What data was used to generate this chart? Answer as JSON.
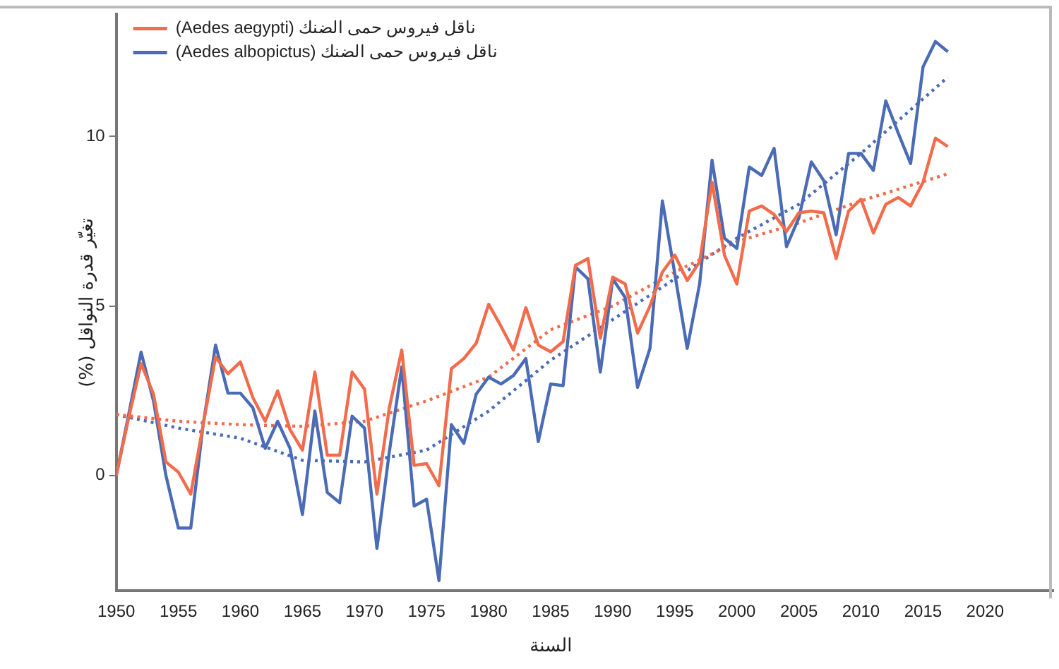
{
  "chart_data": {
    "type": "line",
    "xlabel": "السنة",
    "ylabel": "تغيّر قدرة النواقل (%)",
    "x": [
      1950,
      1951,
      1952,
      1953,
      1954,
      1955,
      1956,
      1957,
      1958,
      1959,
      1960,
      1961,
      1962,
      1963,
      1964,
      1965,
      1966,
      1967,
      1968,
      1969,
      1970,
      1971,
      1972,
      1973,
      1974,
      1975,
      1976,
      1977,
      1978,
      1979,
      1980,
      1981,
      1982,
      1983,
      1984,
      1985,
      1986,
      1987,
      1988,
      1989,
      1990,
      1991,
      1992,
      1993,
      1994,
      1995,
      1996,
      1997,
      1998,
      1999,
      2000,
      2001,
      2002,
      2003,
      2004,
      2005,
      2006,
      2007,
      2008,
      2009,
      2010,
      2011,
      2012,
      2013,
      2014,
      2015,
      2016,
      2017
    ],
    "series": [
      {
        "name": "ناقل فيروس حمى الضنك (Aedes aegypti)",
        "color": "#f26b4b",
        "values": [
          0,
          1.7,
          3.3,
          2.4,
          0.4,
          0.1,
          -0.55,
          1.5,
          3.5,
          3.0,
          3.35,
          2.3,
          1.6,
          2.5,
          1.35,
          0.75,
          3.05,
          0.6,
          0.6,
          3.05,
          2.55,
          -0.55,
          2.0,
          3.7,
          0.3,
          0.35,
          -0.3,
          3.15,
          3.45,
          3.9,
          5.05,
          4.4,
          3.7,
          4.95,
          3.85,
          3.65,
          3.95,
          6.2,
          6.4,
          4.05,
          5.85,
          5.65,
          4.2,
          5.0,
          6.0,
          6.5,
          5.75,
          6.3,
          8.65,
          6.5,
          5.65,
          7.8,
          7.95,
          7.7,
          7.2,
          7.75,
          7.8,
          7.75,
          6.4,
          7.8,
          8.15,
          7.15,
          8.0,
          8.2,
          7.95,
          8.65,
          9.95,
          9.7
        ]
      },
      {
        "name": "ناقل فيروس حمى الضنك (Aedes albopictus)",
        "color": "#4a6bb5",
        "values": [
          0,
          1.8,
          3.64,
          2.2,
          0,
          -1.55,
          -1.55,
          1.5,
          3.85,
          2.43,
          2.43,
          2.0,
          0.8,
          1.6,
          0.8,
          -1.15,
          1.9,
          -0.5,
          -0.8,
          1.75,
          1.4,
          -2.15,
          0.7,
          3.2,
          -0.9,
          -0.7,
          -3.1,
          1.5,
          0.95,
          2.4,
          2.9,
          2.7,
          2.95,
          3.45,
          1.0,
          2.7,
          2.65,
          6.15,
          5.8,
          3.05,
          5.8,
          5.25,
          2.6,
          3.75,
          8.1,
          5.95,
          3.75,
          5.65,
          9.3,
          7.0,
          6.7,
          9.1,
          8.85,
          9.65,
          6.75,
          7.6,
          9.25,
          8.7,
          7.1,
          9.5,
          9.5,
          9.0,
          11.05,
          10.1,
          9.2,
          12.05,
          12.8,
          12.5
        ]
      },
      {
        "type": "line",
        "line_style": "dotted",
        "color": "#f26b4b",
        "x": [
          1950,
          1955,
          1960,
          1965,
          1970,
          1975,
          1980,
          1985,
          1990,
          1995,
          2000,
          2005,
          2010,
          2017
        ],
        "values": [
          1.8,
          1.6,
          1.5,
          1.45,
          1.6,
          2.2,
          2.9,
          4.3,
          5.0,
          6.0,
          6.9,
          7.45,
          8.1,
          8.9
        ]
      },
      {
        "type": "line",
        "line_style": "dotted",
        "color": "#4a6bb5",
        "x": [
          1950,
          1955,
          1960,
          1965,
          1970,
          1975,
          1980,
          1985,
          1990,
          1995,
          2000,
          2005,
          2010,
          2017
        ],
        "values": [
          1.8,
          1.4,
          1.1,
          0.45,
          0.4,
          0.75,
          1.9,
          3.4,
          4.6,
          5.8,
          7.0,
          8.0,
          9.5,
          11.75
        ]
      }
    ],
    "xlim": [
      1950,
      2025.5
    ],
    "xticks": [
      1950,
      1955,
      1960,
      1965,
      1970,
      1975,
      1980,
      1985,
      1990,
      1995,
      2000,
      2005,
      2010,
      2015,
      2020
    ],
    "ylim": [
      -3.4,
      13.6
    ],
    "yticks": [
      0,
      5,
      10
    ],
    "grid": false,
    "legend": "top left",
    "marker": "none",
    "line_style": "solid"
  }
}
